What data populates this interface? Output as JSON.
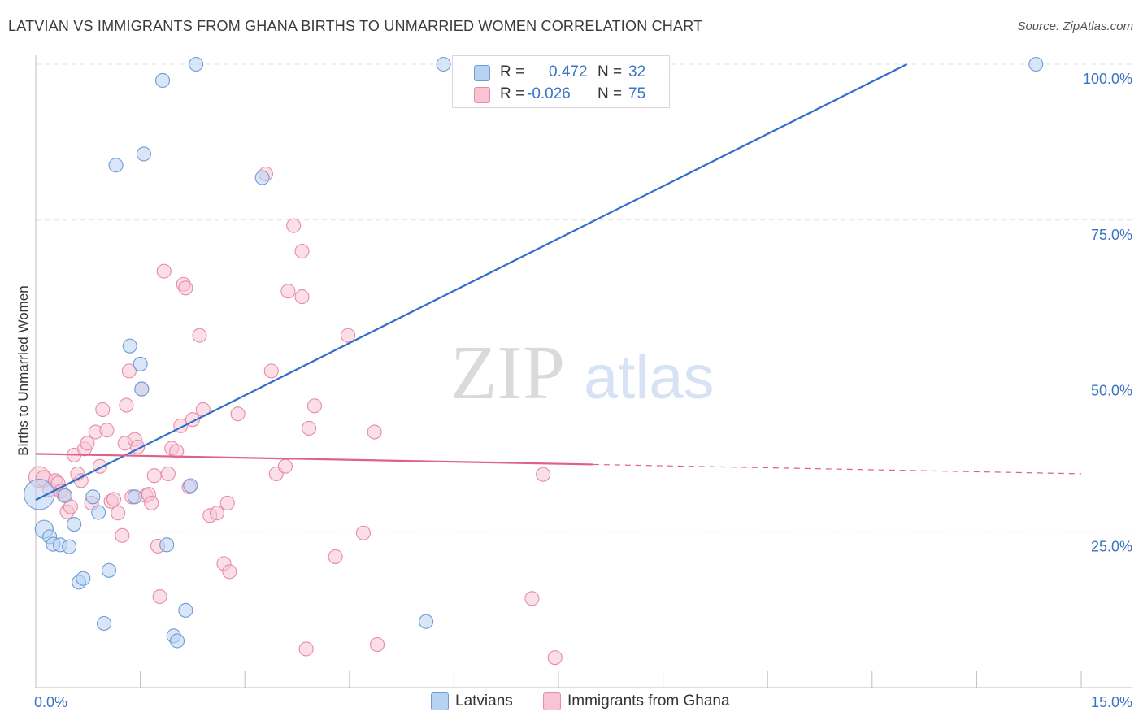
{
  "title": "LATVIAN VS IMMIGRANTS FROM GHANA BIRTHS TO UNMARRIED WOMEN CORRELATION CHART",
  "source": "Source: ZipAtlas.com",
  "watermark": {
    "zip": "ZIP",
    "atlas": "atlas"
  },
  "colors": {
    "blue_fill": "#b8d2f3",
    "blue_stroke": "#6f9bd8",
    "blue_line": "#2f6fcb",
    "pink_fill": "#f8c4d4",
    "pink_stroke": "#e98aa8",
    "pink_line": "#e0608c",
    "value_text": "#3a74c5",
    "grid": "#e2e2e2"
  },
  "stats": [
    {
      "r_label": "R =",
      "r_value": "0.472",
      "n_label": "N =",
      "n_value": "32"
    },
    {
      "r_label": "R =",
      "r_value": "-0.026",
      "n_label": "N =",
      "n_value": "75"
    }
  ],
  "legend": [
    "Latvians",
    "Immigrants from Ghana"
  ],
  "chart_data": {
    "type": "scatter",
    "title": "LATVIAN VS IMMIGRANTS FROM GHANA BIRTHS TO UNMARRIED WOMEN CORRELATION CHART",
    "xlabel": "",
    "ylabel": "Births to Unmarried Women",
    "xlim": [
      0,
      15
    ],
    "ylim": [
      0,
      100
    ],
    "x_tick_labels": [
      "0.0%",
      "15.0%"
    ],
    "y_ticks": [
      25,
      50,
      75,
      100
    ],
    "y_tick_labels": [
      "25.0%",
      "50.0%",
      "75.0%",
      "100.0%"
    ],
    "grid": true,
    "series": [
      {
        "name": "Latvians",
        "trend": {
          "x": [
            0,
            12.5
          ],
          "y": [
            30.1,
            100
          ]
        },
        "points": [
          {
            "x": 0.05,
            "y": 31.0,
            "s": 2.2
          },
          {
            "x": 0.12,
            "y": 25.4,
            "s": 1.3
          },
          {
            "x": 0.2,
            "y": 24.2,
            "s": 1
          },
          {
            "x": 0.25,
            "y": 23.0,
            "s": 1
          },
          {
            "x": 0.35,
            "y": 22.9,
            "s": 1
          },
          {
            "x": 0.42,
            "y": 30.8,
            "s": 1
          },
          {
            "x": 0.48,
            "y": 22.6,
            "s": 1
          },
          {
            "x": 0.55,
            "y": 26.2,
            "s": 1
          },
          {
            "x": 0.62,
            "y": 16.9,
            "s": 1
          },
          {
            "x": 0.68,
            "y": 17.5,
            "s": 1
          },
          {
            "x": 0.82,
            "y": 30.6,
            "s": 1
          },
          {
            "x": 0.9,
            "y": 28.1,
            "s": 1
          },
          {
            "x": 0.98,
            "y": 10.3,
            "s": 1
          },
          {
            "x": 1.05,
            "y": 18.8,
            "s": 1
          },
          {
            "x": 1.15,
            "y": 83.8,
            "s": 1
          },
          {
            "x": 1.35,
            "y": 54.8,
            "s": 1
          },
          {
            "x": 1.42,
            "y": 30.6,
            "s": 1
          },
          {
            "x": 1.5,
            "y": 51.9,
            "s": 1
          },
          {
            "x": 1.52,
            "y": 47.9,
            "s": 1
          },
          {
            "x": 1.55,
            "y": 85.6,
            "s": 1
          },
          {
            "x": 1.82,
            "y": 97.4,
            "s": 1
          },
          {
            "x": 1.88,
            "y": 22.9,
            "s": 1
          },
          {
            "x": 1.98,
            "y": 8.3,
            "s": 1
          },
          {
            "x": 2.03,
            "y": 7.5,
            "s": 1
          },
          {
            "x": 2.15,
            "y": 12.4,
            "s": 1
          },
          {
            "x": 2.22,
            "y": 32.4,
            "s": 1
          },
          {
            "x": 2.3,
            "y": 100,
            "s": 1
          },
          {
            "x": 3.25,
            "y": 81.8,
            "s": 1
          },
          {
            "x": 5.6,
            "y": 10.6,
            "s": 1
          },
          {
            "x": 5.85,
            "y": 100,
            "s": 1
          },
          {
            "x": 14.35,
            "y": 100,
            "s": 1
          },
          {
            "x": 1.3,
            "y": 30.6,
            "s": 0.01
          }
        ]
      },
      {
        "name": "Immigrants from Ghana",
        "trend": {
          "x": [
            0,
            8.0
          ],
          "y": [
            37.5,
            35.8
          ]
        },
        "trend_dashed": {
          "x": [
            8.0,
            15.0
          ],
          "y": [
            35.8,
            34.3
          ]
        },
        "points": [
          {
            "x": 0.05,
            "y": 33.8,
            "s": 1.5
          },
          {
            "x": 0.12,
            "y": 33.5,
            "s": 1.2
          },
          {
            "x": 0.2,
            "y": 31.8,
            "s": 1
          },
          {
            "x": 0.28,
            "y": 33.2,
            "s": 1
          },
          {
            "x": 0.32,
            "y": 32.8,
            "s": 1
          },
          {
            "x": 0.36,
            "y": 31.5,
            "s": 1
          },
          {
            "x": 0.4,
            "y": 30.9,
            "s": 1
          },
          {
            "x": 0.45,
            "y": 28.2,
            "s": 1
          },
          {
            "x": 0.5,
            "y": 29.0,
            "s": 1
          },
          {
            "x": 0.55,
            "y": 37.3,
            "s": 1
          },
          {
            "x": 0.6,
            "y": 34.3,
            "s": 1
          },
          {
            "x": 0.65,
            "y": 33.2,
            "s": 1
          },
          {
            "x": 0.7,
            "y": 38.3,
            "s": 1
          },
          {
            "x": 0.74,
            "y": 39.2,
            "s": 1
          },
          {
            "x": 0.8,
            "y": 29.6,
            "s": 1
          },
          {
            "x": 0.86,
            "y": 41.0,
            "s": 1
          },
          {
            "x": 0.92,
            "y": 35.5,
            "s": 1
          },
          {
            "x": 0.96,
            "y": 44.6,
            "s": 1
          },
          {
            "x": 1.02,
            "y": 41.3,
            "s": 1
          },
          {
            "x": 1.08,
            "y": 29.9,
            "s": 1
          },
          {
            "x": 1.12,
            "y": 30.2,
            "s": 1
          },
          {
            "x": 1.18,
            "y": 28.0,
            "s": 1
          },
          {
            "x": 1.24,
            "y": 24.4,
            "s": 1
          },
          {
            "x": 1.28,
            "y": 39.2,
            "s": 1
          },
          {
            "x": 1.3,
            "y": 45.3,
            "s": 1
          },
          {
            "x": 1.34,
            "y": 50.8,
            "s": 1
          },
          {
            "x": 1.38,
            "y": 30.6,
            "s": 1
          },
          {
            "x": 1.42,
            "y": 39.8,
            "s": 1
          },
          {
            "x": 1.46,
            "y": 38.6,
            "s": 1
          },
          {
            "x": 1.52,
            "y": 47.9,
            "s": 1
          },
          {
            "x": 1.58,
            "y": 30.8,
            "s": 1
          },
          {
            "x": 1.62,
            "y": 31.0,
            "s": 1
          },
          {
            "x": 1.66,
            "y": 29.6,
            "s": 1
          },
          {
            "x": 1.7,
            "y": 34.0,
            "s": 1
          },
          {
            "x": 1.75,
            "y": 22.7,
            "s": 1
          },
          {
            "x": 1.78,
            "y": 14.6,
            "s": 1
          },
          {
            "x": 1.84,
            "y": 66.8,
            "s": 1
          },
          {
            "x": 1.9,
            "y": 34.3,
            "s": 1
          },
          {
            "x": 1.95,
            "y": 38.4,
            "s": 1
          },
          {
            "x": 2.02,
            "y": 37.9,
            "s": 1
          },
          {
            "x": 2.08,
            "y": 42.0,
            "s": 1
          },
          {
            "x": 2.12,
            "y": 64.7,
            "s": 1
          },
          {
            "x": 2.15,
            "y": 64.1,
            "s": 1
          },
          {
            "x": 2.2,
            "y": 32.2,
            "s": 1
          },
          {
            "x": 2.25,
            "y": 43.0,
            "s": 1
          },
          {
            "x": 2.35,
            "y": 56.5,
            "s": 1
          },
          {
            "x": 2.4,
            "y": 44.6,
            "s": 1
          },
          {
            "x": 2.5,
            "y": 27.6,
            "s": 1
          },
          {
            "x": 2.6,
            "y": 28.0,
            "s": 1
          },
          {
            "x": 2.7,
            "y": 19.9,
            "s": 1
          },
          {
            "x": 2.75,
            "y": 29.6,
            "s": 1
          },
          {
            "x": 2.78,
            "y": 18.6,
            "s": 1
          },
          {
            "x": 2.9,
            "y": 43.9,
            "s": 1
          },
          {
            "x": 3.3,
            "y": 82.4,
            "s": 1
          },
          {
            "x": 3.38,
            "y": 50.8,
            "s": 1
          },
          {
            "x": 3.45,
            "y": 34.3,
            "s": 1
          },
          {
            "x": 3.58,
            "y": 35.5,
            "s": 1
          },
          {
            "x": 3.62,
            "y": 63.6,
            "s": 1
          },
          {
            "x": 3.7,
            "y": 74.1,
            "s": 1
          },
          {
            "x": 3.82,
            "y": 62.7,
            "s": 1
          },
          {
            "x": 3.82,
            "y": 70.0,
            "s": 1
          },
          {
            "x": 3.88,
            "y": 6.2,
            "s": 1
          },
          {
            "x": 3.92,
            "y": 41.6,
            "s": 1
          },
          {
            "x": 4.0,
            "y": 45.2,
            "s": 1
          },
          {
            "x": 4.3,
            "y": 21.0,
            "s": 1
          },
          {
            "x": 4.48,
            "y": 56.5,
            "s": 1
          },
          {
            "x": 4.7,
            "y": 24.8,
            "s": 1
          },
          {
            "x": 4.86,
            "y": 41.0,
            "s": 1
          },
          {
            "x": 4.9,
            "y": 6.9,
            "s": 1
          },
          {
            "x": 7.12,
            "y": 14.3,
            "s": 1
          },
          {
            "x": 7.28,
            "y": 34.2,
            "s": 1
          },
          {
            "x": 7.45,
            "y": 4.8,
            "s": 1
          },
          {
            "x": 1.1,
            "y": 35.7,
            "s": 0.01
          },
          {
            "x": 0.9,
            "y": 30.1,
            "s": 0.01
          },
          {
            "x": 2.1,
            "y": 33.5,
            "s": 0.01
          }
        ]
      }
    ]
  }
}
